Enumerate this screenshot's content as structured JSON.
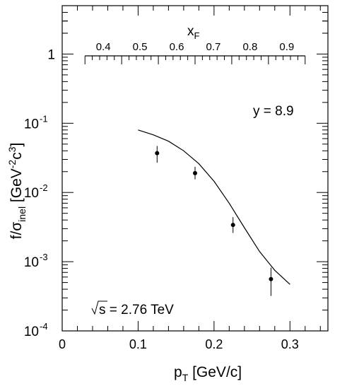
{
  "chart_data": {
    "type": "scatter",
    "ylabel": {
      "main": "f/σ",
      "sub": "inel",
      "unit_prefix": " [GeV",
      "exp1": "-2",
      "mid": "c",
      "exp2": "3",
      "unit_suffix": "]"
    },
    "xlabel": {
      "main": "p",
      "sub": "T",
      "unit": " [GeV/c]"
    },
    "top_axis_label": {
      "main": "x",
      "sub": "F"
    },
    "xlim": [
      0,
      0.35
    ],
    "ylim": [
      0.0001,
      5
    ],
    "y_scale": "log",
    "x_ticks": [
      "0",
      "0.1",
      "0.2",
      "0.3"
    ],
    "y_ticks": [
      {
        "value": 1,
        "base": "1",
        "exp": ""
      },
      {
        "value": 0.1,
        "base": "10",
        "exp": "-1"
      },
      {
        "value": 0.01,
        "base": "10",
        "exp": "-2"
      },
      {
        "value": 0.001,
        "base": "10",
        "exp": "-3"
      },
      {
        "value": 0.0001,
        "base": "10",
        "exp": "-4"
      }
    ],
    "top_axis": {
      "range_xF": [
        0.35,
        0.95
      ],
      "pT_range": [
        0.03,
        0.32
      ],
      "ticks": [
        "0.4",
        "0.5",
        "0.6",
        "0.7",
        "0.8",
        "0.9"
      ]
    },
    "annotations": {
      "rapidity": "y = 8.9",
      "energy": "s = 2.76 TeV"
    },
    "series": [
      {
        "type": "points_with_errors",
        "x": [
          0.125,
          0.175,
          0.225,
          0.275
        ],
        "y": [
          0.037,
          0.019,
          0.0034,
          0.00056
        ],
        "y_low": [
          0.027,
          0.0155,
          0.0026,
          0.00032
        ],
        "y_high": [
          0.047,
          0.0235,
          0.0044,
          0.00082
        ]
      },
      {
        "type": "line",
        "x": [
          0.1,
          0.12,
          0.14,
          0.16,
          0.18,
          0.2,
          0.22,
          0.24,
          0.26,
          0.28,
          0.3
        ],
        "y": [
          0.08,
          0.068,
          0.055,
          0.04,
          0.026,
          0.0145,
          0.007,
          0.0031,
          0.0014,
          0.00075,
          0.00047
        ]
      }
    ]
  }
}
